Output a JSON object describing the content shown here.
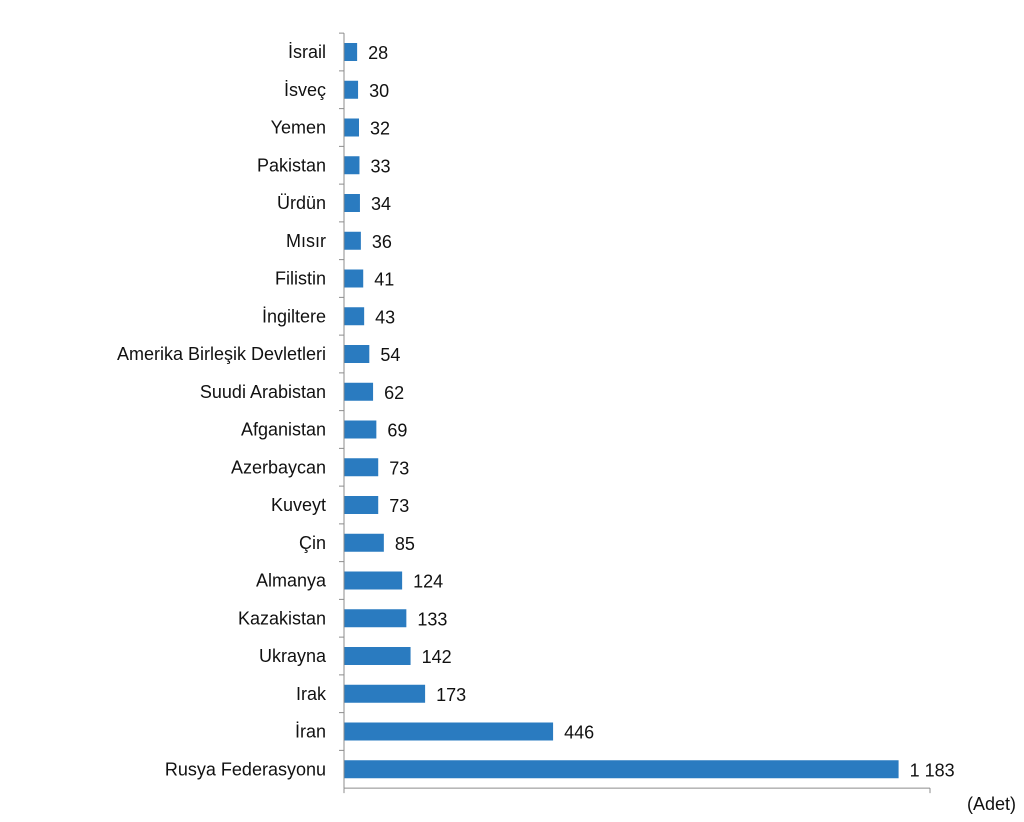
{
  "chart_data": {
    "type": "bar",
    "orientation": "horizontal",
    "categories": [
      "İsrail",
      "İsveç",
      "Yemen",
      "Pakistan",
      "Ürdün",
      "Mısır",
      "Filistin",
      "İngiltere",
      "Amerika Birleşik Devletleri",
      "Suudi Arabistan",
      "Afganistan",
      "Azerbaycan",
      "Kuveyt",
      "Çin",
      "Almanya",
      "Kazakistan",
      "Ukrayna",
      "Irak",
      "İran",
      "Rusya Federasyonu"
    ],
    "values": [
      28,
      30,
      32,
      33,
      34,
      36,
      41,
      43,
      54,
      62,
      69,
      73,
      73,
      85,
      124,
      133,
      142,
      173,
      446,
      1183
    ],
    "data_labels": [
      "28",
      "30",
      "32",
      "33",
      "34",
      "36",
      "41",
      "43",
      "54",
      "62",
      "69",
      "73",
      "73",
      "85",
      "124",
      "133",
      "142",
      "173",
      "446",
      "1 183"
    ],
    "unit_label": "(Adet)",
    "xlim": [
      0,
      1250
    ],
    "grid": false,
    "legend": "none",
    "bar_color": "#2a7bc0"
  }
}
